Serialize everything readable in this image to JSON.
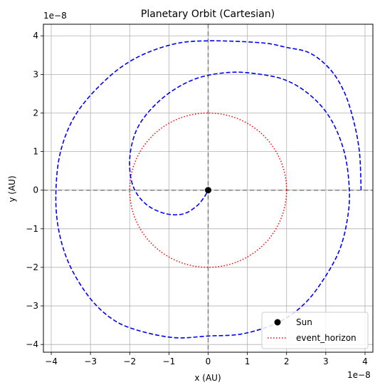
{
  "chart_data": {
    "type": "line",
    "title": "Planetary Orbit (Cartesian)",
    "xlabel": "x (AU)",
    "ylabel": "y (AU)",
    "x_multiplier": "1e−8",
    "y_multiplier": "1e−8",
    "xlim": [
      -4.2,
      4.2
    ],
    "ylim": [
      -4.2,
      4.3
    ],
    "xticks": [
      -4,
      -3,
      -2,
      -1,
      0,
      1,
      2,
      3,
      4
    ],
    "yticks": [
      -4,
      -3,
      -2,
      -1,
      0,
      1,
      2,
      3,
      4
    ],
    "xtick_labels": [
      "−4",
      "−3",
      "−2",
      "−1",
      "0",
      "1",
      "2",
      "3",
      "4"
    ],
    "ytick_labels": [
      "−4",
      "−3",
      "−2",
      "−1",
      "0",
      "1",
      "2",
      "3",
      "4"
    ],
    "grid": true,
    "legend_position": "bottom-right",
    "series": [
      {
        "kind": "orbit",
        "style": "dashed",
        "color": "#0000ff",
        "points": [
          [
            3.9,
            0.0
          ],
          [
            3.86,
            0.96
          ],
          [
            3.72,
            1.75
          ],
          [
            3.48,
            2.52
          ],
          [
            3.12,
            3.12
          ],
          [
            2.6,
            3.55
          ],
          [
            2.0,
            3.7
          ],
          [
            1.35,
            3.82
          ],
          [
            0.0,
            3.87
          ],
          [
            -0.9,
            3.78
          ],
          [
            -1.85,
            3.42
          ],
          [
            -2.62,
            2.85
          ],
          [
            -3.35,
            2.0
          ],
          [
            -3.75,
            1.05
          ],
          [
            -3.88,
            0.0
          ],
          [
            -3.82,
            -0.98
          ],
          [
            -3.55,
            -1.9
          ],
          [
            -3.05,
            -2.75
          ],
          [
            -2.5,
            -3.3
          ],
          [
            -1.9,
            -3.6
          ],
          [
            -0.9,
            -3.82
          ],
          [
            0.0,
            -3.78
          ],
          [
            0.9,
            -3.72
          ],
          [
            1.8,
            -3.42
          ],
          [
            2.45,
            -2.95
          ],
          [
            2.95,
            -2.3
          ],
          [
            3.35,
            -1.55
          ],
          [
            3.55,
            -0.75
          ],
          [
            3.6,
            0.0
          ],
          [
            3.48,
            0.95
          ],
          [
            3.15,
            1.8
          ],
          [
            2.65,
            2.42
          ],
          [
            1.98,
            2.85
          ],
          [
            1.2,
            3.02
          ],
          [
            0.5,
            3.05
          ],
          [
            -0.28,
            2.9
          ],
          [
            -0.95,
            2.55
          ],
          [
            -1.5,
            2.05
          ],
          [
            -1.85,
            1.5
          ],
          [
            -2.0,
            0.8
          ],
          [
            -1.92,
            0.12
          ],
          [
            -1.6,
            -0.35
          ],
          [
            -1.12,
            -0.6
          ],
          [
            -0.65,
            -0.62
          ],
          [
            -0.3,
            -0.42
          ],
          [
            -0.1,
            -0.18
          ],
          [
            0.0,
            0.0
          ]
        ]
      },
      {
        "name": "event_horizon",
        "kind": "circle",
        "style": "dotted",
        "color": "#ff0000",
        "radius": 2.0
      },
      {
        "name": "Sun",
        "kind": "marker",
        "color": "#000000",
        "x": 0,
        "y": 0
      }
    ],
    "reference_lines": [
      {
        "orientation": "horizontal",
        "value": 0,
        "style": "dashed",
        "color": "#808080"
      },
      {
        "orientation": "vertical",
        "value": 0,
        "style": "dashed",
        "color": "#808080"
      }
    ]
  }
}
